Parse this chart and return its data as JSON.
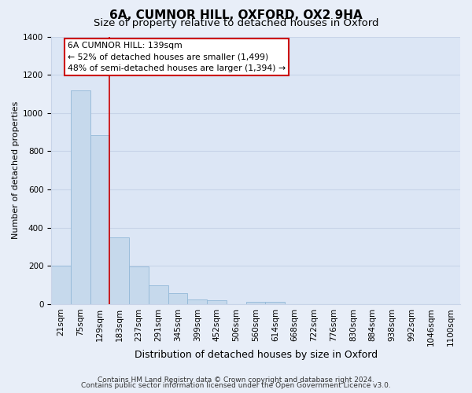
{
  "title": "6A, CUMNOR HILL, OXFORD, OX2 9HA",
  "subtitle": "Size of property relative to detached houses in Oxford",
  "xlabel": "Distribution of detached houses by size in Oxford",
  "ylabel": "Number of detached properties",
  "bar_labels": [
    "21sqm",
    "75sqm",
    "129sqm",
    "183sqm",
    "237sqm",
    "291sqm",
    "345sqm",
    "399sqm",
    "452sqm",
    "506sqm",
    "560sqm",
    "614sqm",
    "668sqm",
    "722sqm",
    "776sqm",
    "830sqm",
    "884sqm",
    "938sqm",
    "992sqm",
    "1046sqm",
    "1100sqm"
  ],
  "bar_values": [
    200,
    1120,
    885,
    350,
    195,
    100,
    55,
    22,
    20,
    0,
    10,
    12,
    0,
    0,
    0,
    0,
    0,
    0,
    0,
    0,
    0
  ],
  "bar_color": "#c6d9ec",
  "bar_edge_color": "#93b8d8",
  "vline_color": "#cc0000",
  "annotation_title": "6A CUMNOR HILL: 139sqm",
  "annotation_line1": "← 52% of detached houses are smaller (1,499)",
  "annotation_line2": "48% of semi-detached houses are larger (1,394) →",
  "annotation_box_facecolor": "#ffffff",
  "annotation_box_edgecolor": "#cc0000",
  "ylim": [
    0,
    1400
  ],
  "yticks": [
    0,
    200,
    400,
    600,
    800,
    1000,
    1200,
    1400
  ],
  "footer1": "Contains HM Land Registry data © Crown copyright and database right 2024.",
  "footer2": "Contains public sector information licensed under the Open Government Licence v3.0.",
  "background_color": "#e8eef8",
  "plot_background_color": "#dce6f5",
  "grid_color": "#c8d4e8",
  "title_fontsize": 11,
  "subtitle_fontsize": 9.5,
  "xlabel_fontsize": 9,
  "ylabel_fontsize": 8,
  "footer_fontsize": 6.5,
  "tick_fontsize": 7.5,
  "annotation_fontsize": 7.8
}
